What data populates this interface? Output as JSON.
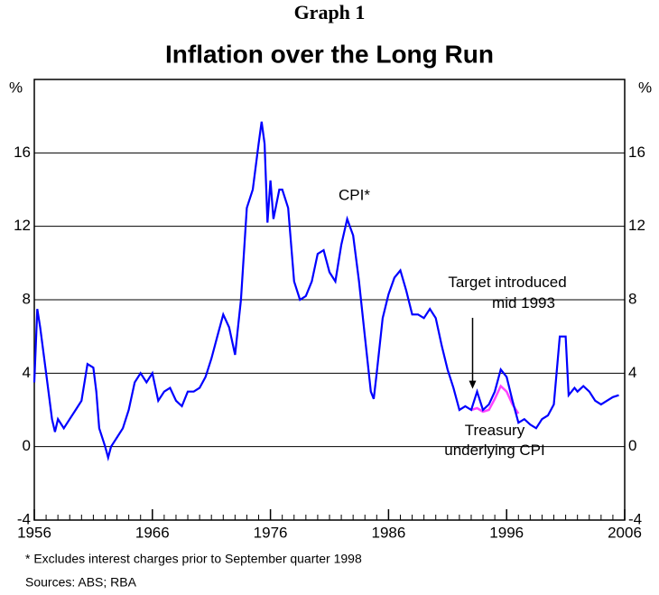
{
  "chart_data": {
    "type": "line",
    "title": "Graph 1",
    "subtitle": "Inflation over the Long Run",
    "y_unit_left": "%",
    "y_unit_right": "%",
    "xlim": [
      1956,
      2006
    ],
    "xticks": [
      1956,
      1966,
      1976,
      1986,
      1996,
      2006
    ],
    "ylim": [
      -4,
      20
    ],
    "yticks": [
      -4,
      0,
      4,
      8,
      12,
      16
    ],
    "grid": true,
    "series": [
      {
        "name": "CPI*",
        "color": "#0000ff",
        "x": [
          1956.0,
          1956.25,
          1956.5,
          1957,
          1957.5,
          1957.75,
          1958,
          1958.5,
          1959,
          1959.5,
          1960,
          1960.5,
          1961,
          1961.25,
          1961.5,
          1962,
          1962.25,
          1962.5,
          1963,
          1963.5,
          1964,
          1964.5,
          1965,
          1965.5,
          1966,
          1966.5,
          1967,
          1967.5,
          1968,
          1968.5,
          1969,
          1969.5,
          1970,
          1970.5,
          1971,
          1971.5,
          1972,
          1972.5,
          1973,
          1973.5,
          1974,
          1974.5,
          1975,
          1975.25,
          1975.5,
          1975.75,
          1976,
          1976.25,
          1976.75,
          1977,
          1977.5,
          1978,
          1978.5,
          1979,
          1979.5,
          1980,
          1980.5,
          1981,
          1981.5,
          1982,
          1982.5,
          1983,
          1983.5,
          1984,
          1984.5,
          1984.75,
          1985,
          1985.5,
          1986,
          1986.5,
          1987,
          1987.5,
          1988,
          1988.5,
          1989,
          1989.5,
          1990,
          1990.5,
          1991,
          1991.5,
          1992,
          1992.5,
          1993,
          1993.5,
          1994,
          1994.5,
          1995,
          1995.5,
          1996,
          1996.5,
          1997,
          1997.5,
          1998,
          1998.5,
          1999,
          1999.5,
          2000,
          2000.5,
          2001,
          2001.25,
          2001.75,
          2002,
          2002.5,
          2003,
          2003.5,
          2004,
          2004.5,
          2005,
          2005.5
        ],
        "values": [
          3.5,
          7.5,
          6.5,
          4,
          1.5,
          0.8,
          1.5,
          1,
          1.5,
          2,
          2.5,
          4.5,
          4.3,
          3,
          1,
          0,
          -0.6,
          0,
          0.5,
          1,
          2,
          3.5,
          4,
          3.5,
          4,
          2.5,
          3,
          3.2,
          2.5,
          2.2,
          3,
          3,
          3.2,
          3.8,
          4.8,
          6,
          7.2,
          6.5,
          5,
          8,
          13,
          14,
          16.5,
          17.7,
          16.5,
          12.2,
          14.5,
          12.4,
          14,
          14,
          13,
          9,
          8,
          8.2,
          9,
          10.5,
          10.7,
          9.5,
          9,
          11,
          12.4,
          11.5,
          9,
          6,
          3,
          2.6,
          4,
          7,
          8.3,
          9.2,
          9.6,
          8.5,
          7.2,
          7.2,
          7,
          7.5,
          7,
          5.5,
          4.2,
          3.2,
          2,
          2.2,
          2,
          3,
          2,
          2.3,
          3,
          4.2,
          3.8,
          2.5,
          1.3,
          1.5,
          1.2,
          1,
          1.5,
          1.7,
          2.3,
          6,
          6,
          2.8,
          3.2,
          3,
          3.3,
          3,
          2.5,
          2.3,
          2.5,
          2.7,
          2.8
        ]
      },
      {
        "name": "Treasury underlying CPI",
        "color": "#ff44ff",
        "x": [
          1993,
          1993.5,
          1994,
          1994.5,
          1995,
          1995.5,
          1996,
          1996.5,
          1997
        ],
        "values": [
          2,
          2.1,
          1.9,
          2,
          2.6,
          3.3,
          3,
          2.3,
          1.8
        ]
      }
    ],
    "annotations": [
      {
        "lines": [
          "Target introduced",
          "mid 1993"
        ],
        "x": 1993.5,
        "y": 3
      }
    ],
    "footnotes": [
      "*    Excludes interest charges prior to September quarter 1998",
      "Sources: ABS; RBA"
    ]
  }
}
